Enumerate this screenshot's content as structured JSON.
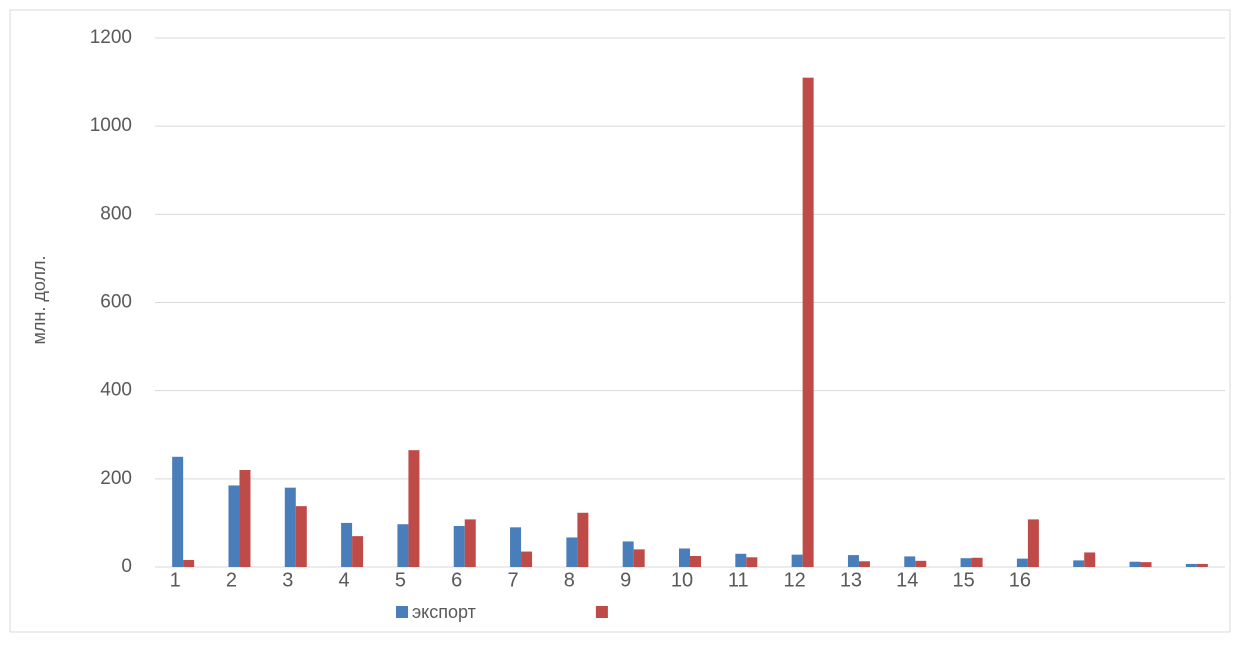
{
  "chart_data": {
    "type": "bar",
    "y_label": "млн. долл.",
    "categories": [
      "1",
      "2",
      "3",
      "4",
      "5",
      "6",
      "7",
      "8",
      "9",
      "10",
      "11",
      "12",
      "13",
      "14",
      "15",
      "16",
      null,
      null,
      null
    ],
    "series": [
      {
        "name": "экспорт",
        "color": "#4a7ebb",
        "values": [
          250,
          185,
          180,
          100,
          97,
          93,
          90,
          67,
          58,
          42,
          30,
          28,
          27,
          24,
          20,
          19,
          15,
          12,
          7
        ]
      },
      {
        "color": "#be4b48",
        "values": [
          16,
          220,
          138,
          70,
          265,
          108,
          35,
          123,
          40,
          25,
          22,
          1110,
          13,
          14,
          21,
          108,
          33,
          11,
          7
        ]
      }
    ],
    "ylim": [
      0,
      1200
    ],
    "yticks": [
      0,
      200,
      400,
      600,
      800,
      1000,
      1200
    ],
    "grid": true,
    "legend": "bottom"
  }
}
